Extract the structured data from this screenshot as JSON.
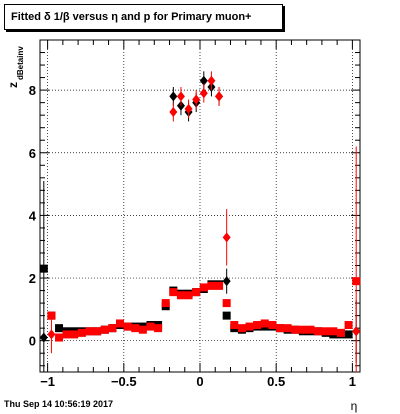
{
  "title": "Fitted δ 1/β versus η and p for Primary muon+",
  "timestamp": "Thu Sep 14 10:56:19 2017",
  "chart_data": {
    "type": "scatter",
    "xlabel": "η",
    "ylabel": "z",
    "ylabel_sub": "dBetainv",
    "xlim": [
      -1.05,
      1.05
    ],
    "ylim": [
      -1.0,
      9.6
    ],
    "x_ticks": [
      -1,
      -0.5,
      0,
      0.5,
      1
    ],
    "x_tick_labels": [
      "−1",
      "−0.5",
      "0",
      "0.5",
      "1"
    ],
    "y_ticks": [
      0,
      2,
      4,
      6,
      8
    ],
    "y_tick_labels": [
      "0",
      "2",
      "4",
      "6",
      "8"
    ],
    "grid": true,
    "series": [
      {
        "color": "#000000",
        "marker": "square",
        "points": [
          {
            "x": -1.025,
            "y": 2.3,
            "err": 0.0
          },
          {
            "x": -0.975,
            "y": 0.8,
            "err": 0.0
          },
          {
            "x": -0.925,
            "y": 0.4,
            "err": 0.0
          },
          {
            "x": -0.875,
            "y": 0.3,
            "err": 0.0
          },
          {
            "x": -0.825,
            "y": 0.3,
            "err": 0.0
          },
          {
            "x": -0.775,
            "y": 0.3,
            "err": 0.0
          },
          {
            "x": -0.725,
            "y": 0.3,
            "err": 0.0
          },
          {
            "x": -0.675,
            "y": 0.3,
            "err": 0.0
          },
          {
            "x": -0.625,
            "y": 0.35,
            "err": 0.0
          },
          {
            "x": -0.575,
            "y": 0.4,
            "err": 0.0
          },
          {
            "x": -0.525,
            "y": 0.5,
            "err": 0.0
          },
          {
            "x": -0.475,
            "y": 0.45,
            "err": 0.0
          },
          {
            "x": -0.425,
            "y": 0.45,
            "err": 0.0
          },
          {
            "x": -0.375,
            "y": 0.45,
            "err": 0.0
          },
          {
            "x": -0.325,
            "y": 0.5,
            "err": 0.0
          },
          {
            "x": -0.275,
            "y": 0.5,
            "err": 0.0
          },
          {
            "x": -0.225,
            "y": 1.1,
            "err": 0.0
          },
          {
            "x": -0.175,
            "y": 1.6,
            "err": 0.0
          },
          {
            "x": -0.125,
            "y": 1.5,
            "err": 0.0
          },
          {
            "x": -0.075,
            "y": 1.5,
            "err": 0.0
          },
          {
            "x": -0.025,
            "y": 1.55,
            "err": 0.0
          },
          {
            "x": 0.025,
            "y": 1.65,
            "err": 0.0
          },
          {
            "x": 0.075,
            "y": 1.8,
            "err": 0.0
          },
          {
            "x": 0.125,
            "y": 1.8,
            "err": 0.0
          },
          {
            "x": 0.175,
            "y": 0.8,
            "err": 0.0
          },
          {
            "x": 0.225,
            "y": 0.4,
            "err": 0.0
          },
          {
            "x": 0.275,
            "y": 0.35,
            "err": 0.0
          },
          {
            "x": 0.325,
            "y": 0.4,
            "err": 0.0
          },
          {
            "x": 0.375,
            "y": 0.45,
            "err": 0.0
          },
          {
            "x": 0.425,
            "y": 0.45,
            "err": 0.0
          },
          {
            "x": 0.475,
            "y": 0.45,
            "err": 0.0
          },
          {
            "x": 0.525,
            "y": 0.4,
            "err": 0.0
          },
          {
            "x": 0.575,
            "y": 0.35,
            "err": 0.0
          },
          {
            "x": 0.625,
            "y": 0.35,
            "err": 0.0
          },
          {
            "x": 0.675,
            "y": 0.3,
            "err": 0.0
          },
          {
            "x": 0.725,
            "y": 0.3,
            "err": 0.0
          },
          {
            "x": 0.775,
            "y": 0.3,
            "err": 0.0
          },
          {
            "x": 0.825,
            "y": 0.25,
            "err": 0.0
          },
          {
            "x": 0.875,
            "y": 0.2,
            "err": 0.0
          },
          {
            "x": 0.925,
            "y": 0.2,
            "err": 0.0
          },
          {
            "x": 0.975,
            "y": 0.2,
            "err": 0.0
          }
        ]
      },
      {
        "color": "#000000",
        "marker": "diamond",
        "points": [
          {
            "x": -1.025,
            "y": 0.1,
            "err": 5.0
          },
          {
            "x": -0.175,
            "y": 7.8,
            "err": 0.3
          },
          {
            "x": -0.125,
            "y": 7.5,
            "err": 0.3
          },
          {
            "x": -0.075,
            "y": 7.3,
            "err": 0.3
          },
          {
            "x": -0.025,
            "y": 7.6,
            "err": 0.3
          },
          {
            "x": 0.025,
            "y": 8.3,
            "err": 0.3
          },
          {
            "x": 0.075,
            "y": 8.1,
            "err": 0.3
          },
          {
            "x": 0.125,
            "y": 7.8,
            "err": 0.3
          },
          {
            "x": 0.175,
            "y": 1.9,
            "err": 0.4
          },
          {
            "x": 1.025,
            "y": 0.3,
            "err": 1.0
          }
        ]
      },
      {
        "color": "#ff0000",
        "marker": "square",
        "points": [
          {
            "x": -0.975,
            "y": 0.8,
            "err": 0.0
          },
          {
            "x": -0.925,
            "y": 0.1,
            "err": 0.0
          },
          {
            "x": -0.875,
            "y": 0.2,
            "err": 0.0
          },
          {
            "x": -0.825,
            "y": 0.2,
            "err": 0.0
          },
          {
            "x": -0.775,
            "y": 0.25,
            "err": 0.0
          },
          {
            "x": -0.725,
            "y": 0.3,
            "err": 0.0
          },
          {
            "x": -0.675,
            "y": 0.3,
            "err": 0.0
          },
          {
            "x": -0.625,
            "y": 0.35,
            "err": 0.0
          },
          {
            "x": -0.575,
            "y": 0.4,
            "err": 0.0
          },
          {
            "x": -0.525,
            "y": 0.55,
            "err": 0.0
          },
          {
            "x": -0.475,
            "y": 0.45,
            "err": 0.0
          },
          {
            "x": -0.425,
            "y": 0.4,
            "err": 0.0
          },
          {
            "x": -0.375,
            "y": 0.35,
            "err": 0.0
          },
          {
            "x": -0.325,
            "y": 0.45,
            "err": 0.0
          },
          {
            "x": -0.275,
            "y": 0.4,
            "err": 0.0
          },
          {
            "x": -0.225,
            "y": 1.2,
            "err": 0.0
          },
          {
            "x": -0.175,
            "y": 1.55,
            "err": 0.0
          },
          {
            "x": -0.125,
            "y": 1.45,
            "err": 0.0
          },
          {
            "x": -0.075,
            "y": 1.45,
            "err": 0.0
          },
          {
            "x": -0.025,
            "y": 1.55,
            "err": 0.0
          },
          {
            "x": 0.025,
            "y": 1.7,
            "err": 0.0
          },
          {
            "x": 0.075,
            "y": 1.75,
            "err": 0.0
          },
          {
            "x": 0.125,
            "y": 1.75,
            "err": 0.0
          },
          {
            "x": 0.175,
            "y": 1.2,
            "err": 0.0
          },
          {
            "x": 0.225,
            "y": 0.5,
            "err": 0.0
          },
          {
            "x": 0.275,
            "y": 0.4,
            "err": 0.0
          },
          {
            "x": 0.325,
            "y": 0.45,
            "err": 0.0
          },
          {
            "x": 0.375,
            "y": 0.5,
            "err": 0.0
          },
          {
            "x": 0.425,
            "y": 0.55,
            "err": 0.0
          },
          {
            "x": 0.475,
            "y": 0.5,
            "err": 0.0
          },
          {
            "x": 0.525,
            "y": 0.4,
            "err": 0.0
          },
          {
            "x": 0.575,
            "y": 0.4,
            "err": 0.0
          },
          {
            "x": 0.625,
            "y": 0.35,
            "err": 0.0
          },
          {
            "x": 0.675,
            "y": 0.35,
            "err": 0.0
          },
          {
            "x": 0.725,
            "y": 0.35,
            "err": 0.0
          },
          {
            "x": 0.775,
            "y": 0.3,
            "err": 0.0
          },
          {
            "x": 0.825,
            "y": 0.3,
            "err": 0.0
          },
          {
            "x": 0.875,
            "y": 0.3,
            "err": 0.0
          },
          {
            "x": 0.925,
            "y": 0.25,
            "err": 0.0
          },
          {
            "x": 0.975,
            "y": 0.5,
            "err": 0.0
          },
          {
            "x": 1.025,
            "y": 1.9,
            "err": 0.0
          }
        ]
      },
      {
        "color": "#ff0000",
        "marker": "diamond",
        "points": [
          {
            "x": -0.975,
            "y": 0.2,
            "err": 0.6
          },
          {
            "x": -0.175,
            "y": 7.3,
            "err": 0.3
          },
          {
            "x": -0.125,
            "y": 7.8,
            "err": 0.3
          },
          {
            "x": -0.075,
            "y": 7.4,
            "err": 0.3
          },
          {
            "x": -0.025,
            "y": 7.7,
            "err": 0.3
          },
          {
            "x": 0.025,
            "y": 7.9,
            "err": 0.3
          },
          {
            "x": 0.075,
            "y": 8.3,
            "err": 0.3
          },
          {
            "x": 0.125,
            "y": 7.8,
            "err": 0.3
          },
          {
            "x": 0.175,
            "y": 3.3,
            "err": 0.9
          },
          {
            "x": 1.025,
            "y": 0.3,
            "err": 5.9
          }
        ]
      }
    ]
  }
}
